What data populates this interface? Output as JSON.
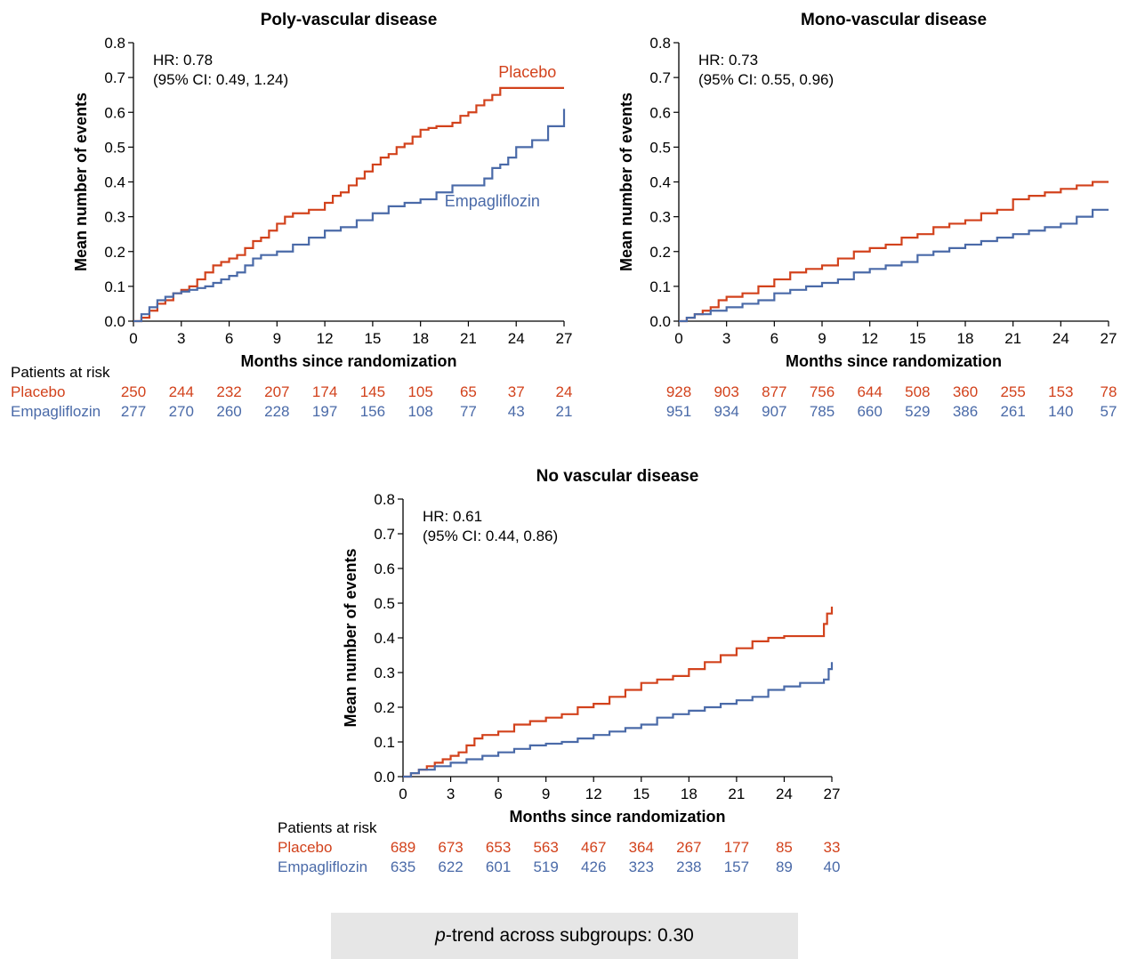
{
  "colors": {
    "placebo": "#d2421c",
    "empagliflozin": "#4a6aa8",
    "axis": "#000000",
    "footer_bg": "#e6e6e6"
  },
  "footer": {
    "p_label": "p",
    "text": "-trend across subgroups: 0.30"
  },
  "chart_data": [
    {
      "type": "line",
      "step": true,
      "title": "Poly-vascular disease",
      "xlabel": "Months since randomization",
      "ylabel": "Mean number of events",
      "xlim": [
        0,
        27
      ],
      "ylim": [
        0,
        0.8
      ],
      "xticks": [
        0,
        3,
        6,
        9,
        12,
        15,
        18,
        21,
        24,
        27
      ],
      "yticks": [
        "0.0",
        "0.1",
        "0.2",
        "0.3",
        "0.4",
        "0.5",
        "0.6",
        "0.7",
        "0.8"
      ],
      "hr_line1": "HR: 0.78",
      "hr_line2": "(95% CI: 0.49, 1.24)",
      "series_labels": [
        {
          "series": "placebo",
          "text": "Placebo",
          "x": 24.7,
          "y": 0.7
        },
        {
          "series": "empagliflozin",
          "text": "Empagliflozin",
          "x": 22.5,
          "y": 0.33
        }
      ],
      "series": [
        {
          "name": "Placebo",
          "key": "placebo",
          "x": [
            0,
            0.5,
            1,
            1.5,
            2,
            2.5,
            3,
            3.5,
            4,
            4.5,
            5,
            5.5,
            6,
            6.5,
            7,
            7.5,
            8,
            8.5,
            9,
            9.5,
            10,
            11,
            12,
            12.5,
            13,
            13.5,
            14,
            14.5,
            15,
            15.5,
            16,
            16.5,
            17,
            17.5,
            18,
            18.5,
            19,
            19.5,
            20,
            20.5,
            21,
            21.5,
            22,
            22.5,
            23,
            24,
            25,
            26,
            27
          ],
          "y": [
            0,
            0.01,
            0.03,
            0.05,
            0.06,
            0.08,
            0.09,
            0.1,
            0.12,
            0.14,
            0.16,
            0.17,
            0.18,
            0.19,
            0.21,
            0.23,
            0.24,
            0.26,
            0.28,
            0.3,
            0.31,
            0.32,
            0.34,
            0.36,
            0.37,
            0.39,
            0.41,
            0.43,
            0.45,
            0.47,
            0.48,
            0.5,
            0.51,
            0.53,
            0.55,
            0.555,
            0.56,
            0.56,
            0.57,
            0.59,
            0.6,
            0.62,
            0.635,
            0.65,
            0.67,
            0.67,
            0.67,
            0.67,
            0.67
          ]
        },
        {
          "name": "Empagliflozin",
          "key": "empagliflozin",
          "x": [
            0,
            0.5,
            1,
            1.5,
            2,
            2.5,
            3,
            3.5,
            4,
            4.5,
            5,
            5.5,
            6,
            6.5,
            7,
            7.5,
            8,
            9,
            10,
            11,
            12,
            13,
            14,
            15,
            16,
            17,
            18,
            19,
            20,
            21,
            22,
            22.5,
            23,
            23.5,
            24,
            25,
            26,
            26.5,
            27,
            27
          ],
          "y": [
            0,
            0.02,
            0.04,
            0.06,
            0.07,
            0.08,
            0.085,
            0.09,
            0.095,
            0.1,
            0.11,
            0.12,
            0.13,
            0.14,
            0.16,
            0.18,
            0.19,
            0.2,
            0.22,
            0.24,
            0.26,
            0.27,
            0.29,
            0.31,
            0.33,
            0.34,
            0.35,
            0.37,
            0.39,
            0.39,
            0.41,
            0.44,
            0.45,
            0.47,
            0.5,
            0.52,
            0.56,
            0.56,
            0.56,
            0.61
          ]
        }
      ],
      "risk_table": {
        "header": "Patients at risk",
        "rows": [
          {
            "series": "placebo",
            "label": "Placebo",
            "values": [
              "250",
              "244",
              "232",
              "207",
              "174",
              "145",
              "105",
              "65",
              "37",
              "24"
            ]
          },
          {
            "series": "empagliflozin",
            "label": "Empagliflozin",
            "values": [
              "277",
              "270",
              "260",
              "228",
              "197",
              "156",
              "108",
              "77",
              "43",
              "21"
            ]
          }
        ]
      }
    },
    {
      "type": "line",
      "step": true,
      "title": "Mono-vascular disease",
      "xlabel": "Months since randomization",
      "ylabel": "Mean number of events",
      "xlim": [
        0,
        27
      ],
      "ylim": [
        0,
        0.8
      ],
      "xticks": [
        0,
        3,
        6,
        9,
        12,
        15,
        18,
        21,
        24,
        27
      ],
      "yticks": [
        "0.0",
        "0.1",
        "0.2",
        "0.3",
        "0.4",
        "0.5",
        "0.6",
        "0.7",
        "0.8"
      ],
      "hr_line1": "HR: 0.73",
      "hr_line2": "(95% CI: 0.55, 0.96)",
      "series_labels": [],
      "series": [
        {
          "name": "Placebo",
          "key": "placebo",
          "x": [
            0,
            0.5,
            1,
            1.5,
            2,
            2.5,
            3,
            4,
            5,
            6,
            7,
            8,
            9,
            10,
            11,
            12,
            13,
            14,
            15,
            16,
            17,
            18,
            19,
            20,
            21,
            22,
            23,
            24,
            25,
            26,
            27
          ],
          "y": [
            0,
            0.01,
            0.02,
            0.03,
            0.04,
            0.06,
            0.07,
            0.08,
            0.1,
            0.12,
            0.14,
            0.15,
            0.16,
            0.18,
            0.2,
            0.21,
            0.22,
            0.24,
            0.25,
            0.27,
            0.28,
            0.29,
            0.31,
            0.32,
            0.35,
            0.36,
            0.37,
            0.38,
            0.39,
            0.4,
            0.4
          ]
        },
        {
          "name": "Empagliflozin",
          "key": "empagliflozin",
          "x": [
            0,
            0.5,
            1,
            2,
            3,
            4,
            5,
            6,
            7,
            8,
            9,
            10,
            11,
            12,
            13,
            14,
            15,
            16,
            17,
            18,
            19,
            20,
            21,
            22,
            23,
            24,
            25,
            26,
            27
          ],
          "y": [
            0,
            0.01,
            0.02,
            0.03,
            0.04,
            0.05,
            0.06,
            0.08,
            0.09,
            0.1,
            0.11,
            0.12,
            0.14,
            0.15,
            0.16,
            0.17,
            0.19,
            0.2,
            0.21,
            0.22,
            0.23,
            0.24,
            0.25,
            0.26,
            0.27,
            0.28,
            0.3,
            0.32,
            0.32
          ]
        }
      ],
      "risk_table": {
        "header": "",
        "rows": [
          {
            "series": "placebo",
            "label": "",
            "values": [
              "928",
              "903",
              "877",
              "756",
              "644",
              "508",
              "360",
              "255",
              "153",
              "78"
            ]
          },
          {
            "series": "empagliflozin",
            "label": "",
            "values": [
              "951",
              "934",
              "907",
              "785",
              "660",
              "529",
              "386",
              "261",
              "140",
              "57"
            ]
          }
        ]
      }
    },
    {
      "type": "line",
      "step": true,
      "title": "No vascular disease",
      "xlabel": "Months since randomization",
      "ylabel": "Mean number of events",
      "xlim": [
        0,
        27
      ],
      "ylim": [
        0,
        0.8
      ],
      "xticks": [
        0,
        3,
        6,
        9,
        12,
        15,
        18,
        21,
        24,
        27
      ],
      "yticks": [
        "0.0",
        "0.1",
        "0.2",
        "0.3",
        "0.4",
        "0.5",
        "0.6",
        "0.7",
        "0.8"
      ],
      "hr_line1": "HR: 0.61",
      "hr_line2": "(95% CI: 0.44, 0.86)",
      "series_labels": [],
      "series": [
        {
          "name": "Placebo",
          "key": "placebo",
          "x": [
            0,
            0.5,
            1,
            1.5,
            2,
            2.5,
            3,
            3.5,
            4,
            4.5,
            5,
            6,
            7,
            8,
            9,
            10,
            11,
            12,
            13,
            14,
            15,
            16,
            17,
            18,
            19,
            20,
            21,
            22,
            23,
            24,
            25,
            26,
            26.5,
            26.7,
            27
          ],
          "y": [
            0,
            0.01,
            0.02,
            0.03,
            0.04,
            0.05,
            0.06,
            0.07,
            0.09,
            0.11,
            0.12,
            0.13,
            0.15,
            0.16,
            0.17,
            0.18,
            0.2,
            0.21,
            0.23,
            0.25,
            0.27,
            0.28,
            0.29,
            0.31,
            0.33,
            0.35,
            0.37,
            0.39,
            0.4,
            0.405,
            0.405,
            0.405,
            0.44,
            0.47,
            0.49
          ]
        },
        {
          "name": "Empagliflozin",
          "key": "empagliflozin",
          "x": [
            0,
            0.5,
            1,
            2,
            3,
            4,
            5,
            6,
            7,
            8,
            9,
            10,
            11,
            12,
            13,
            14,
            15,
            16,
            17,
            18,
            19,
            20,
            21,
            22,
            23,
            24,
            25,
            26,
            26.5,
            26.8,
            27
          ],
          "y": [
            0,
            0.01,
            0.02,
            0.03,
            0.04,
            0.05,
            0.06,
            0.07,
            0.08,
            0.09,
            0.095,
            0.1,
            0.11,
            0.12,
            0.13,
            0.14,
            0.15,
            0.17,
            0.18,
            0.19,
            0.2,
            0.21,
            0.22,
            0.23,
            0.25,
            0.26,
            0.27,
            0.27,
            0.28,
            0.31,
            0.33
          ]
        }
      ],
      "risk_table": {
        "header": "Patients at risk",
        "rows": [
          {
            "series": "placebo",
            "label": "Placebo",
            "values": [
              "689",
              "673",
              "653",
              "563",
              "467",
              "364",
              "267",
              "177",
              "85",
              "33"
            ]
          },
          {
            "series": "empagliflozin",
            "label": "Empagliflozin",
            "values": [
              "635",
              "622",
              "601",
              "519",
              "426",
              "323",
              "238",
              "157",
              "89",
              "40"
            ]
          }
        ]
      }
    }
  ]
}
